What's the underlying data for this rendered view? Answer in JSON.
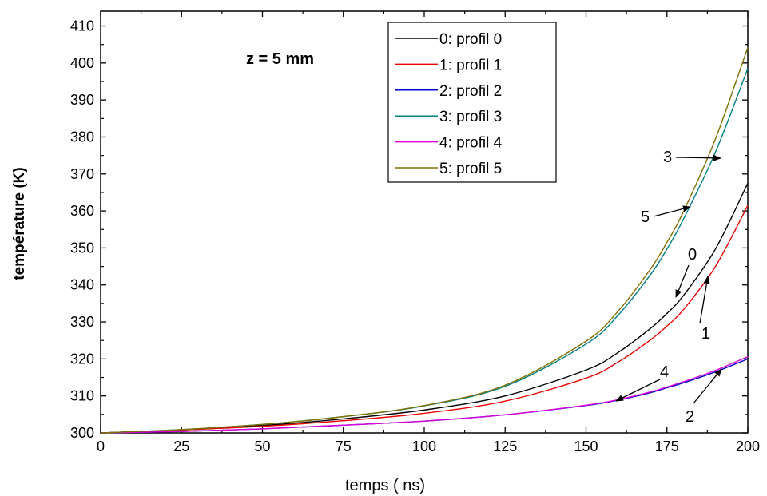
{
  "chart_data": {
    "type": "line",
    "title": "",
    "xlabel": "temps ( ns)",
    "ylabel": "température (K)",
    "xlim": [
      0,
      200
    ],
    "ylim": [
      300,
      414
    ],
    "xticks": [
      0,
      25,
      50,
      75,
      100,
      125,
      150,
      175,
      200
    ],
    "yticks": [
      300,
      310,
      320,
      330,
      340,
      350,
      360,
      370,
      380,
      390,
      400,
      410
    ],
    "legend_position": "top-right",
    "annotation": "z = 5 mm",
    "x": [
      0,
      25,
      50,
      75,
      100,
      125,
      150,
      160,
      170,
      175,
      180,
      190,
      200
    ],
    "series": [
      {
        "name": "0: profil 0",
        "color": "#000000",
        "values": [
          300,
          300.8,
          302,
          303.8,
          306.2,
          310,
          317,
          321.8,
          328.3,
          332.3,
          337.0,
          349.7,
          367.5
        ]
      },
      {
        "name": "1: profil 1",
        "color": "#ee0000",
        "values": [
          300,
          300.8,
          301.8,
          303.3,
          305.3,
          308.6,
          314.8,
          319.2,
          325.2,
          328.9,
          333.2,
          345.0,
          361.5
        ]
      },
      {
        "name": "2: profil 2",
        "color": "#0000cc",
        "values": [
          300,
          300.4,
          301.1,
          302.1,
          303.2,
          304.9,
          307.4,
          308.9,
          310.9,
          312.2,
          313.5,
          316.5,
          320.0
        ]
      },
      {
        "name": "3: profil 3",
        "color": "#008080",
        "values": [
          300,
          300.9,
          302.3,
          304.4,
          307.3,
          312.6,
          324.0,
          331.9,
          342.9,
          349.7,
          357.6,
          375.9,
          398.5
        ]
      },
      {
        "name": "4: profil 4",
        "color": "#dd00dd",
        "values": [
          300,
          300.4,
          301.1,
          302.1,
          303.2,
          304.9,
          307.5,
          309.0,
          311.1,
          312.4,
          313.8,
          316.9,
          320.6
        ]
      },
      {
        "name": "5: profil 5",
        "color": "#807000",
        "values": [
          300,
          300.9,
          302.3,
          304.4,
          307.4,
          312.9,
          324.8,
          333.0,
          344.4,
          351.5,
          359.6,
          379.5,
          404.2
        ]
      }
    ],
    "curve_labels": [
      "3",
      "5",
      "0",
      "1",
      "4",
      "2"
    ]
  }
}
